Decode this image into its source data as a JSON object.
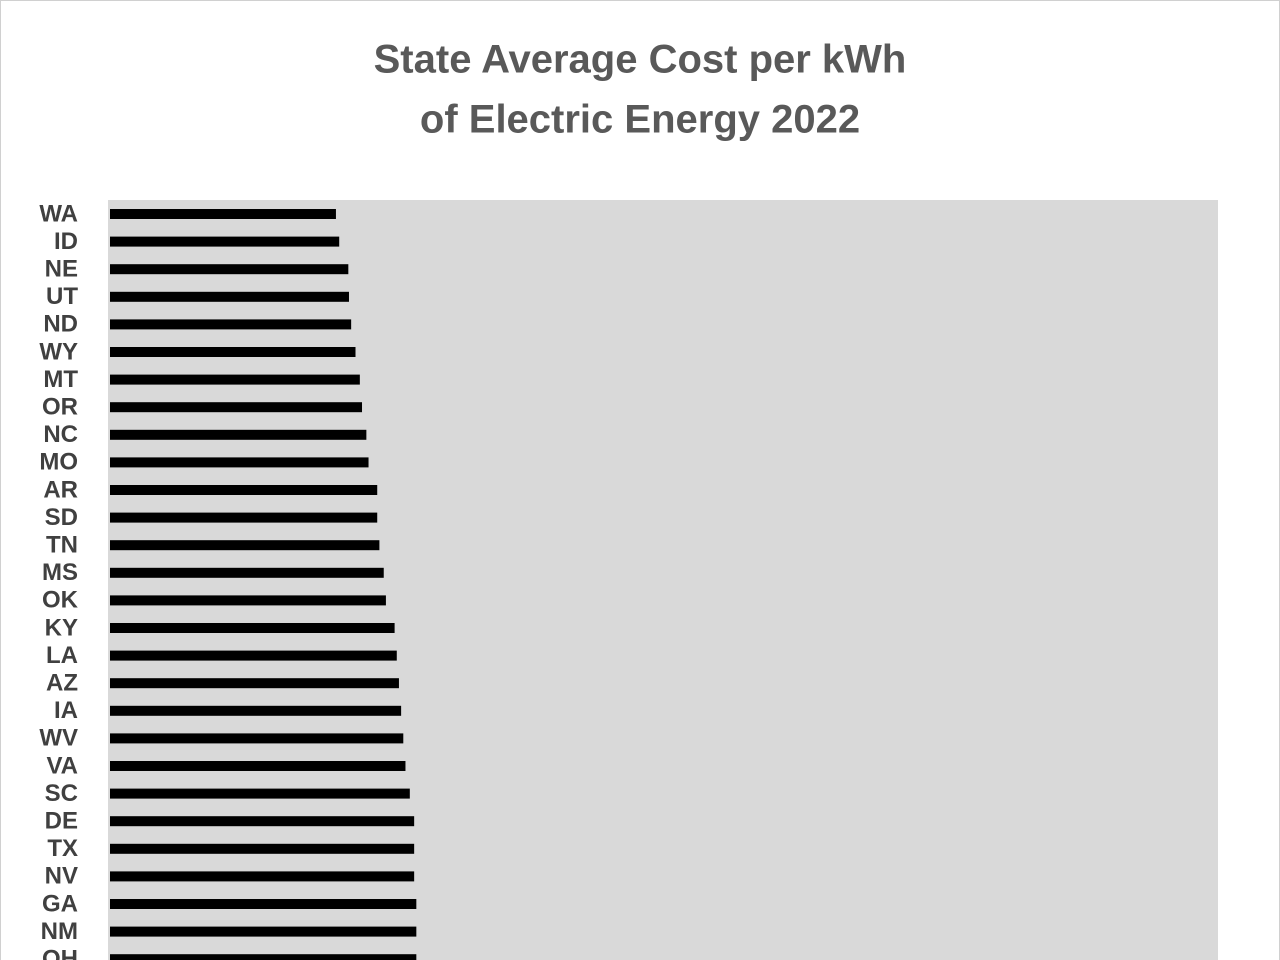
{
  "chart_data": {
    "type": "bar",
    "orientation": "horizontal",
    "title": [
      "State Average Cost per kWh",
      "of Electric Energy 2022"
    ],
    "categories": [
      "WA",
      "ID",
      "NE",
      "UT",
      "ND",
      "WY",
      "MT",
      "OR",
      "NC",
      "MO",
      "AR",
      "SD",
      "TN",
      "MS",
      "OK",
      "KY",
      "LA",
      "AZ",
      "IA",
      "WV",
      "VA",
      "SC",
      "DE",
      "TX",
      "NV",
      "GA",
      "NM",
      "OH"
    ],
    "values": [
      10.4,
      10.55,
      10.97,
      11.0,
      11.1,
      11.3,
      11.5,
      11.6,
      11.8,
      11.9,
      12.3,
      12.3,
      12.4,
      12.6,
      12.7,
      13.1,
      13.2,
      13.3,
      13.4,
      13.5,
      13.6,
      13.8,
      14.0,
      14.0,
      14.0,
      14.1,
      14.1,
      14.1
    ],
    "color": "#000000",
    "xlim": [
      0,
      51
    ]
  }
}
